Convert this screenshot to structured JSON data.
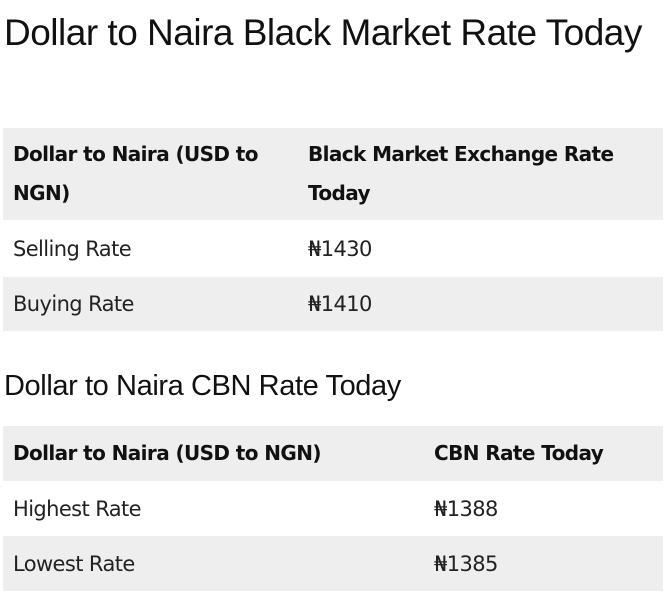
{
  "sections": [
    {
      "heading": "Dollar to Naira Black Market Rate Today",
      "table": {
        "headers": [
          "Dollar to Naira (USD to NGN)",
          "Black Market Exchange Rate Today"
        ],
        "rows": [
          [
            "Selling Rate",
            "₦1430"
          ],
          [
            "Buying Rate",
            "₦1410"
          ]
        ]
      }
    },
    {
      "heading": "Dollar to Naira CBN Rate Today",
      "table": {
        "headers": [
          "Dollar to Naira (USD to NGN)",
          "CBN Rate Today"
        ],
        "rows": [
          [
            "Highest Rate",
            "₦1388"
          ],
          [
            "Lowest Rate",
            "₦1385"
          ]
        ]
      }
    }
  ],
  "colors": {
    "table_stripe": "#eeeeee",
    "text": "#111111"
  }
}
